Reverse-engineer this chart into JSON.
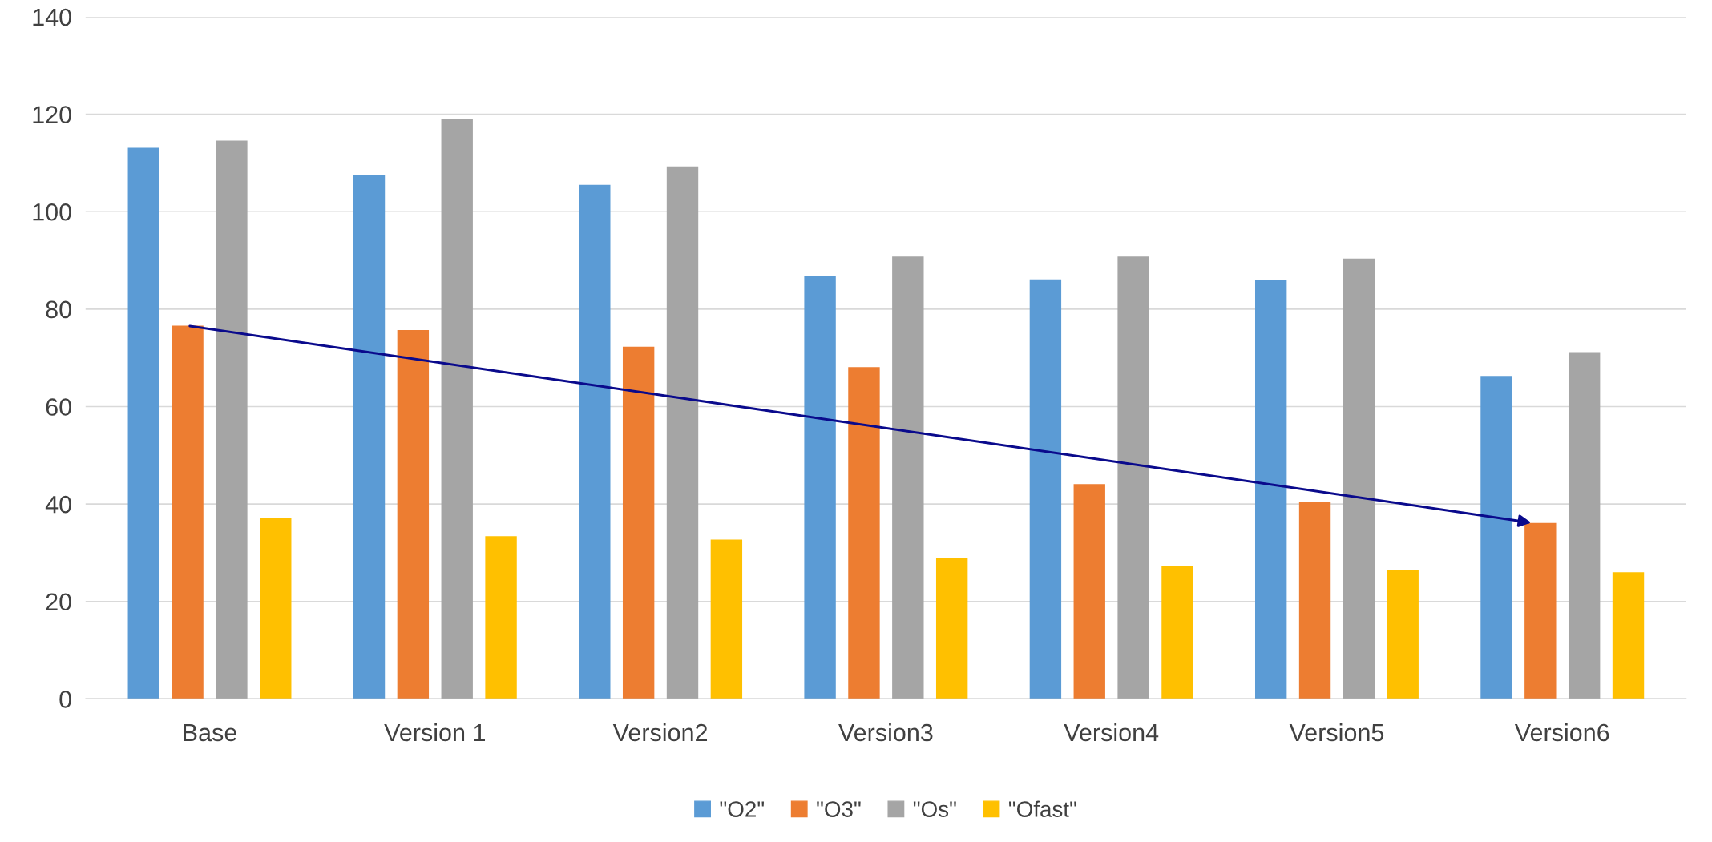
{
  "chart_data": {
    "type": "bar",
    "categories": [
      "Base",
      "Version 1",
      "Version2",
      "Version3",
      "Version4",
      "Version5",
      "Version6"
    ],
    "series": [
      {
        "name": "\"O2\"",
        "color": "#5b9bd5",
        "values": [
          113.1,
          107.5,
          105.5,
          86.8,
          86.1,
          85.9,
          66.3
        ]
      },
      {
        "name": "\"O3\"",
        "color": "#ed7d31",
        "values": [
          76.6,
          75.7,
          72.3,
          68.1,
          44.1,
          40.5,
          36.1
        ]
      },
      {
        "name": "\"Os\"",
        "color": "#a5a5a5",
        "values": [
          114.6,
          119.1,
          109.3,
          90.8,
          90.8,
          90.4,
          71.2
        ]
      },
      {
        "name": "\"Ofast\"",
        "color": "#ffc000",
        "values": [
          37.2,
          33.4,
          32.7,
          28.9,
          27.2,
          26.5,
          26.0
        ]
      }
    ],
    "ylim": [
      0,
      140
    ],
    "yticks": [
      0,
      20,
      40,
      60,
      80,
      100,
      120,
      140
    ],
    "grid": "y",
    "legend": "bottom"
  }
}
